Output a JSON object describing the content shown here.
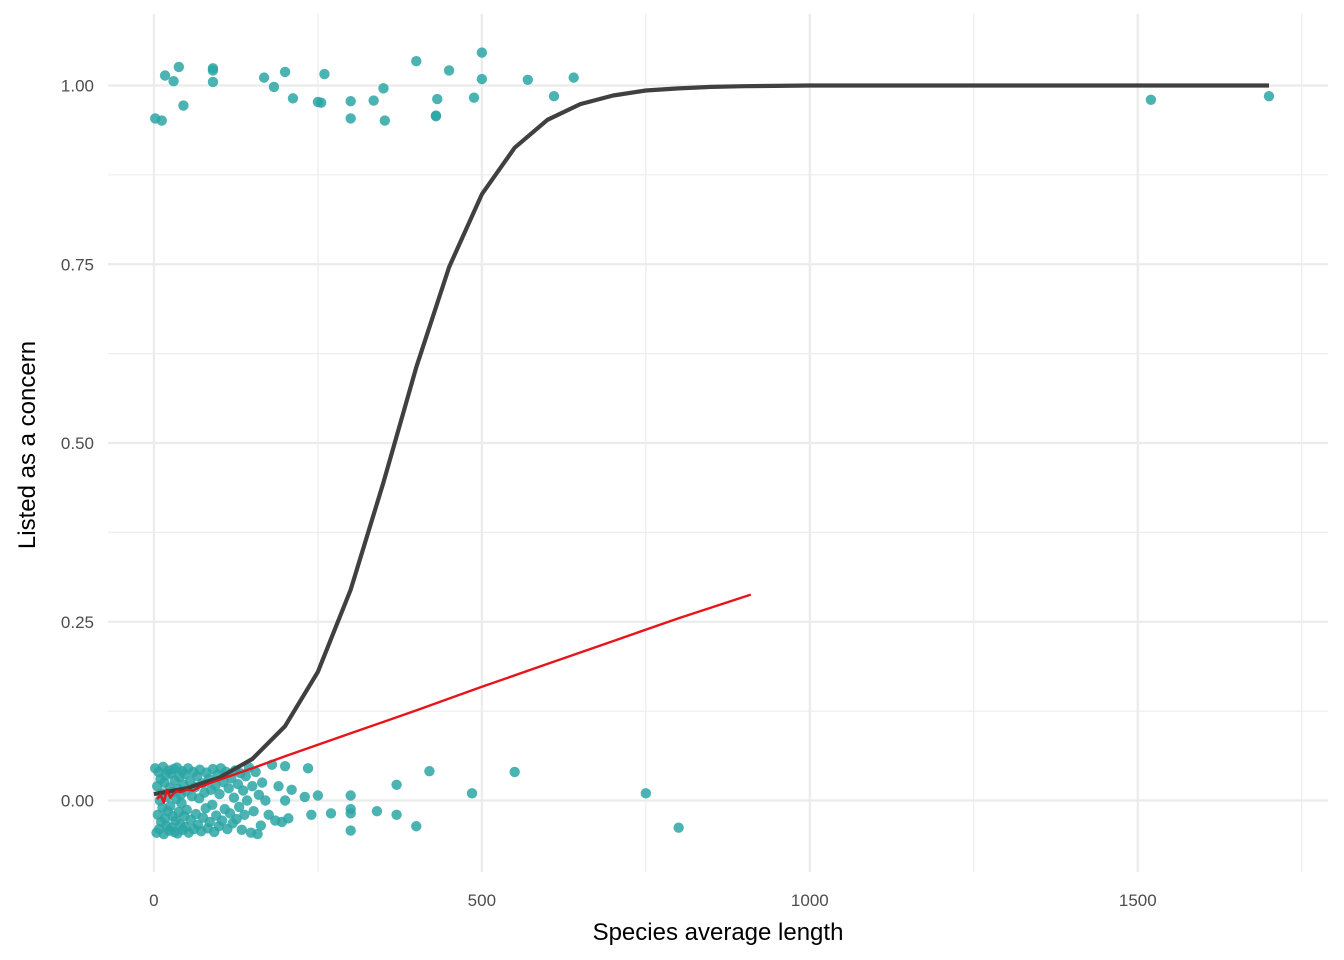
{
  "chart_data": {
    "type": "scatter",
    "title": "",
    "xlabel": "Species average length",
    "ylabel": "Listed as a concern",
    "xlim": [
      -70,
      1790
    ],
    "ylim": [
      -0.1,
      1.1
    ],
    "x_ticks": [
      0,
      500,
      1000,
      1500
    ],
    "x_tick_labels": [
      "0",
      "500",
      "1000",
      "1500"
    ],
    "y_ticks": [
      0,
      0.25,
      0.5,
      0.75,
      1.0
    ],
    "y_tick_labels": [
      "0.00",
      "0.25",
      "0.50",
      "0.75",
      "1.00"
    ],
    "grid": true,
    "legend": "none",
    "colors": {
      "points": "#2ca6a4",
      "logistic_curve": "#404040",
      "linear_fit": "#e8141c",
      "grid": "#ebebeb"
    },
    "points": [
      {
        "x": 2,
        "y": 0.954
      },
      {
        "x": 12,
        "y": 0.951
      },
      {
        "x": 17,
        "y": 1.014
      },
      {
        "x": 30,
        "y": 1.006
      },
      {
        "x": 38,
        "y": 1.026
      },
      {
        "x": 45,
        "y": 0.972
      },
      {
        "x": 90,
        "y": 1.024
      },
      {
        "x": 90,
        "y": 1.021
      },
      {
        "x": 90,
        "y": 1.005
      },
      {
        "x": 168,
        "y": 1.011
      },
      {
        "x": 183,
        "y": 0.998
      },
      {
        "x": 200,
        "y": 1.019
      },
      {
        "x": 212,
        "y": 0.982
      },
      {
        "x": 250,
        "y": 0.977
      },
      {
        "x": 255,
        "y": 0.976
      },
      {
        "x": 260,
        "y": 1.016
      },
      {
        "x": 300,
        "y": 0.954
      },
      {
        "x": 300,
        "y": 0.978
      },
      {
        "x": 335,
        "y": 0.979
      },
      {
        "x": 350,
        "y": 0.996
      },
      {
        "x": 352,
        "y": 0.951
      },
      {
        "x": 400,
        "y": 1.034
      },
      {
        "x": 430,
        "y": 0.958
      },
      {
        "x": 430,
        "y": 0.957
      },
      {
        "x": 432,
        "y": 0.981
      },
      {
        "x": 450,
        "y": 1.021
      },
      {
        "x": 488,
        "y": 0.983
      },
      {
        "x": 500,
        "y": 1.046
      },
      {
        "x": 500,
        "y": 1.009
      },
      {
        "x": 570,
        "y": 1.008
      },
      {
        "x": 610,
        "y": 0.985
      },
      {
        "x": 640,
        "y": 1.011
      },
      {
        "x": 1520,
        "y": 0.98
      },
      {
        "x": 1700,
        "y": 0.985
      },
      {
        "x": 2,
        "y": 0.045
      },
      {
        "x": 4,
        "y": -0.045
      },
      {
        "x": 5,
        "y": 0.02
      },
      {
        "x": 6,
        "y": -0.02
      },
      {
        "x": 7,
        "y": 0.04
      },
      {
        "x": 8,
        "y": -0.04
      },
      {
        "x": 9,
        "y": 0.0
      },
      {
        "x": 10,
        "y": 0.03
      },
      {
        "x": 11,
        "y": -0.03
      },
      {
        "x": 12,
        "y": 0.01
      },
      {
        "x": 13,
        "y": -0.01
      },
      {
        "x": 14,
        "y": 0.047
      },
      {
        "x": 15,
        "y": -0.047
      },
      {
        "x": 16,
        "y": 0.025
      },
      {
        "x": 17,
        "y": -0.025
      },
      {
        "x": 18,
        "y": 0.035
      },
      {
        "x": 19,
        "y": -0.035
      },
      {
        "x": 20,
        "y": 0.005
      },
      {
        "x": 21,
        "y": -0.015
      },
      {
        "x": 22,
        "y": 0.042
      },
      {
        "x": 23,
        "y": -0.042
      },
      {
        "x": 24,
        "y": 0.018
      },
      {
        "x": 25,
        "y": -0.008
      },
      {
        "x": 26,
        "y": 0.038
      },
      {
        "x": 27,
        "y": -0.038
      },
      {
        "x": 28,
        "y": 0.012
      },
      {
        "x": 29,
        "y": -0.022
      },
      {
        "x": 30,
        "y": 0.044
      },
      {
        "x": 31,
        "y": -0.044
      },
      {
        "x": 32,
        "y": 0.028
      },
      {
        "x": 33,
        "y": -0.028
      },
      {
        "x": 34,
        "y": 0.002
      },
      {
        "x": 35,
        "y": 0.046
      },
      {
        "x": 36,
        "y": -0.046
      },
      {
        "x": 37,
        "y": 0.016
      },
      {
        "x": 38,
        "y": -0.016
      },
      {
        "x": 39,
        "y": 0.033
      },
      {
        "x": 40,
        "y": -0.033
      },
      {
        "x": 41,
        "y": 0.008
      },
      {
        "x": 42,
        "y": -0.004
      },
      {
        "x": 43,
        "y": 0.041
      },
      {
        "x": 44,
        "y": -0.041
      },
      {
        "x": 45,
        "y": 0.022
      },
      {
        "x": 46,
        "y": -0.022
      },
      {
        "x": 47,
        "y": 0.037
      },
      {
        "x": 48,
        "y": -0.037
      },
      {
        "x": 49,
        "y": 0.013
      },
      {
        "x": 50,
        "y": -0.013
      },
      {
        "x": 52,
        "y": 0.045
      },
      {
        "x": 53,
        "y": -0.045
      },
      {
        "x": 55,
        "y": 0.027
      },
      {
        "x": 56,
        "y": -0.027
      },
      {
        "x": 58,
        "y": 0.006
      },
      {
        "x": 60,
        "y": 0.04
      },
      {
        "x": 61,
        "y": -0.04
      },
      {
        "x": 63,
        "y": 0.019
      },
      {
        "x": 64,
        "y": -0.019
      },
      {
        "x": 66,
        "y": 0.034
      },
      {
        "x": 67,
        "y": -0.034
      },
      {
        "x": 69,
        "y": 0.003
      },
      {
        "x": 70,
        "y": 0.043
      },
      {
        "x": 72,
        "y": -0.043
      },
      {
        "x": 74,
        "y": 0.024
      },
      {
        "x": 75,
        "y": -0.024
      },
      {
        "x": 77,
        "y": 0.011
      },
      {
        "x": 79,
        "y": -0.011
      },
      {
        "x": 80,
        "y": 0.039
      },
      {
        "x": 82,
        "y": -0.039
      },
      {
        "x": 84,
        "y": 0.03
      },
      {
        "x": 85,
        "y": -0.03
      },
      {
        "x": 87,
        "y": 0.015
      },
      {
        "x": 89,
        "y": -0.006
      },
      {
        "x": 90,
        "y": 0.044
      },
      {
        "x": 92,
        "y": -0.044
      },
      {
        "x": 94,
        "y": 0.021
      },
      {
        "x": 95,
        "y": -0.021
      },
      {
        "x": 97,
        "y": 0.036
      },
      {
        "x": 99,
        "y": -0.036
      },
      {
        "x": 100,
        "y": 0.009
      },
      {
        "x": 102,
        "y": 0.045
      },
      {
        "x": 104,
        "y": -0.028
      },
      {
        "x": 106,
        "y": 0.026
      },
      {
        "x": 108,
        "y": -0.012
      },
      {
        "x": 110,
        "y": 0.04
      },
      {
        "x": 112,
        "y": -0.04
      },
      {
        "x": 114,
        "y": 0.017
      },
      {
        "x": 116,
        "y": -0.018
      },
      {
        "x": 118,
        "y": 0.031
      },
      {
        "x": 120,
        "y": -0.032
      },
      {
        "x": 122,
        "y": 0.004
      },
      {
        "x": 124,
        "y": 0.042
      },
      {
        "x": 126,
        "y": -0.026
      },
      {
        "x": 128,
        "y": 0.023
      },
      {
        "x": 130,
        "y": -0.009
      },
      {
        "x": 132,
        "y": 0.038
      },
      {
        "x": 134,
        "y": -0.041
      },
      {
        "x": 136,
        "y": 0.014
      },
      {
        "x": 138,
        "y": -0.02
      },
      {
        "x": 140,
        "y": 0.034
      },
      {
        "x": 142,
        "y": 0.0
      },
      {
        "x": 145,
        "y": 0.046
      },
      {
        "x": 148,
        "y": -0.045
      },
      {
        "x": 150,
        "y": 0.02
      },
      {
        "x": 152,
        "y": -0.015
      },
      {
        "x": 155,
        "y": 0.04
      },
      {
        "x": 158,
        "y": -0.047
      },
      {
        "x": 160,
        "y": 0.008
      },
      {
        "x": 163,
        "y": -0.035
      },
      {
        "x": 165,
        "y": 0.025
      },
      {
        "x": 170,
        "y": 0.0
      },
      {
        "x": 175,
        "y": -0.02
      },
      {
        "x": 180,
        "y": 0.05
      },
      {
        "x": 185,
        "y": -0.028
      },
      {
        "x": 190,
        "y": 0.02
      },
      {
        "x": 195,
        "y": -0.03
      },
      {
        "x": 200,
        "y": 0.0
      },
      {
        "x": 200,
        "y": 0.048
      },
      {
        "x": 205,
        "y": -0.025
      },
      {
        "x": 210,
        "y": 0.015
      },
      {
        "x": 230,
        "y": 0.005
      },
      {
        "x": 235,
        "y": 0.045
      },
      {
        "x": 240,
        "y": -0.02
      },
      {
        "x": 250,
        "y": 0.007
      },
      {
        "x": 270,
        "y": -0.018
      },
      {
        "x": 300,
        "y": 0.007
      },
      {
        "x": 300,
        "y": -0.012
      },
      {
        "x": 300,
        "y": -0.018
      },
      {
        "x": 300,
        "y": -0.042
      },
      {
        "x": 340,
        "y": -0.015
      },
      {
        "x": 370,
        "y": 0.022
      },
      {
        "x": 370,
        "y": -0.02
      },
      {
        "x": 400,
        "y": -0.036
      },
      {
        "x": 420,
        "y": 0.041
      },
      {
        "x": 485,
        "y": 0.01
      },
      {
        "x": 550,
        "y": 0.04
      },
      {
        "x": 750,
        "y": 0.01
      },
      {
        "x": 800,
        "y": -0.038
      }
    ],
    "series": [
      {
        "type": "line",
        "x": [
          0,
          50,
          100,
          150,
          200,
          250,
          300,
          350,
          400,
          450,
          500,
          550,
          600,
          650,
          700,
          750,
          800,
          850,
          900,
          1000,
          1100,
          1200,
          1300,
          1400,
          1500,
          1600,
          1700
        ],
        "y": [
          0.009,
          0.017,
          0.032,
          0.058,
          0.104,
          0.18,
          0.295,
          0.445,
          0.606,
          0.746,
          0.848,
          0.913,
          0.952,
          0.974,
          0.986,
          0.993,
          0.996,
          0.998,
          0.999,
          1.0,
          1.0,
          1.0,
          1.0,
          1.0,
          1.0,
          1.0,
          1.0
        ]
      },
      {
        "type": "line",
        "x": [
          5,
          10,
          15,
          20,
          25,
          30,
          35,
          40,
          45,
          50,
          60,
          70,
          80,
          90,
          100,
          150,
          200,
          300,
          400,
          500,
          600,
          700,
          800,
          910
        ],
        "y": [
          0.002,
          0.008,
          -0.003,
          0.015,
          0.004,
          0.01,
          0.013,
          0.012,
          0.013,
          0.015,
          0.014,
          0.019,
          0.022,
          0.026,
          0.029,
          0.045,
          0.062,
          0.094,
          0.126,
          0.159,
          0.191,
          0.223,
          0.255,
          0.288
        ]
      }
    ]
  }
}
